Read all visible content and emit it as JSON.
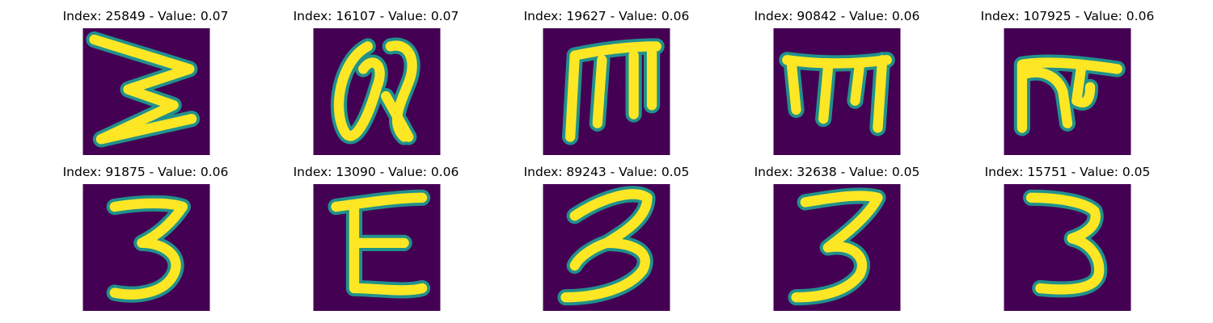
{
  "figure": {
    "background_color": "#440154",
    "stroke_color": "#fde725",
    "edge_color": "#21918c",
    "panels": [
      {
        "title": "Index: 25849 - Value: 0.07",
        "glyph": "slanted-w"
      },
      {
        "title": "Index: 16107 - Value: 0.07",
        "glyph": "at-sign"
      },
      {
        "title": "Index: 19627 - Value: 0.06",
        "glyph": "m-shape"
      },
      {
        "title": "Index: 90842 - Value: 0.06",
        "glyph": "m-shape"
      },
      {
        "title": "Index: 107925 - Value: 0.06",
        "glyph": "hook-shape"
      },
      {
        "title": "Index: 91875 - Value: 0.06",
        "glyph": "digit-3"
      },
      {
        "title": "Index: 13090 - Value: 0.06",
        "glyph": "letter-e"
      },
      {
        "title": "Index: 89243 - Value: 0.05",
        "glyph": "digit-3"
      },
      {
        "title": "Index: 32638 - Value: 0.05",
        "glyph": "digit-3"
      },
      {
        "title": "Index: 15751 - Value: 0.05",
        "glyph": "digit-3"
      }
    ]
  }
}
